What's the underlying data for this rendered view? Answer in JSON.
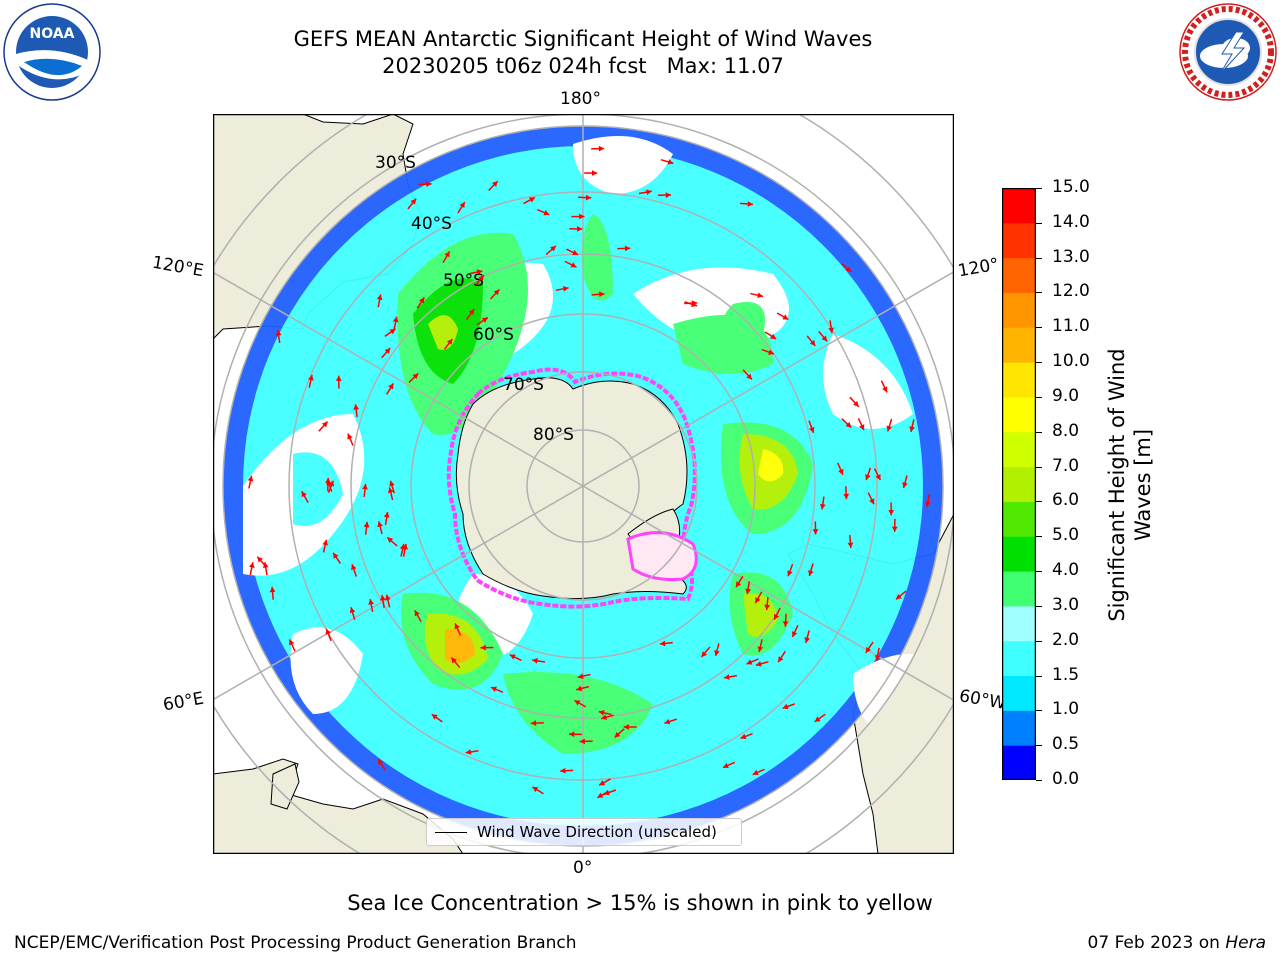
{
  "header": {
    "title_line1": "GEFS MEAN Antarctic Significant Height of Wind Waves",
    "title_line2": "20230205 t06z 024h fcst   Max: 11.07"
  },
  "logos": {
    "left": {
      "name": "NOAA",
      "text": "NOAA",
      "ring_text": "NATIONAL OCEANIC AND ATMOSPHERIC ADMINISTRATION · U.S. DEPARTMENT OF COMMERCE"
    },
    "right": {
      "name": "National Weather Service",
      "ring_text": "NATIONAL WEATHER SERVICE"
    }
  },
  "map": {
    "projection": "south polar stereographic",
    "lon_labels": {
      "top": "180°",
      "bottom": "0°",
      "left_upper": "120°E",
      "left_lower": "60°E",
      "right_upper": "120°",
      "right_lower": "60°W"
    },
    "lat_labels": [
      "30°S",
      "40°S",
      "50°S",
      "60°S",
      "70°S",
      "80°S"
    ],
    "colors": {
      "land": "#eeecdb",
      "ocean": "#ffffff",
      "sea_ice": "#ff44ff",
      "vectors": "#ff0000",
      "grid": "#b0b0b0"
    }
  },
  "legend": {
    "label": "Wind Wave Direction (unscaled)"
  },
  "colorbar": {
    "label_line1": "Significant Height of Wind",
    "label_line2": "Waves [m]",
    "ticks": [
      "0.0",
      "0.5",
      "1.0",
      "1.5",
      "2.0",
      "3.0",
      "4.0",
      "5.0",
      "6.0",
      "7.0",
      "8.0",
      "9.0",
      "10.0",
      "11.0",
      "12.0",
      "13.0",
      "14.0",
      "15.0"
    ],
    "colors": [
      "#0000ff",
      "#0080ff",
      "#00e8ff",
      "#40ffff",
      "#a0ffff",
      "#40ff70",
      "#00e000",
      "#50e800",
      "#b0f000",
      "#d0ff00",
      "#ffff00",
      "#ffe600",
      "#ffb400",
      "#ff9600",
      "#ff6400",
      "#ff3200",
      "#ff0000"
    ]
  },
  "chart_data": {
    "type": "heatmap",
    "title": "GEFS MEAN Antarctic Significant Height of Wind Waves",
    "subtitle": "20230205 t06z 024h fcst   Max: 11.07",
    "max": 11.07,
    "colorbar_range": [
      0,
      15
    ],
    "colorbar_levels": [
      0.0,
      0.5,
      1.0,
      1.5,
      2.0,
      3.0,
      4.0,
      5.0,
      6.0,
      7.0,
      8.0,
      9.0,
      10.0,
      11.0,
      12.0,
      13.0,
      14.0,
      15.0
    ],
    "units": "m"
  },
  "footer": {
    "note": "Sea Ice Concentration > 15% is shown in pink to yellow",
    "credit": "NCEP/EMC/Verification Post Processing Product Generation Branch",
    "date_prefix": "07 Feb 2023 on",
    "date_host": "Hera"
  }
}
